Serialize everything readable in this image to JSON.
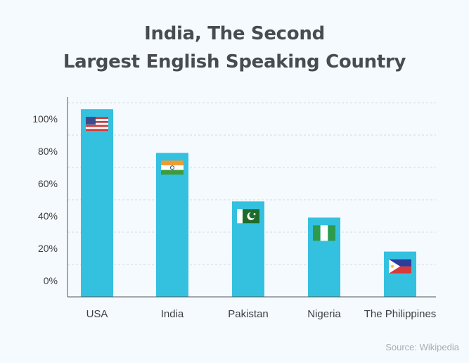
{
  "title_lines": [
    "India, The Second",
    "Largest English Speaking Country"
  ],
  "source": "Source: Wikipedia",
  "colors": {
    "bar": "#34c1e0",
    "axis": "#555555",
    "text": "#3f3f3f",
    "title": "#474c52",
    "grid": "#d4d9de"
  },
  "chart_data": {
    "type": "bar",
    "title": "India, The Second Largest English Speaking Country",
    "xlabel": "",
    "ylabel": "",
    "categories": [
      "USA",
      "India",
      "Pakistan",
      "Nigeria",
      "The Philippines"
    ],
    "values": [
      106,
      79,
      49,
      39,
      18
    ],
    "yticks": [
      "0%",
      "20%",
      "40%",
      "60%",
      "80%",
      "100%"
    ],
    "ylim": [
      0,
      100
    ],
    "grid": true,
    "flags": [
      "usa-flag-icon",
      "india-flag-icon",
      "pakistan-flag-icon",
      "nigeria-flag-icon",
      "philippines-flag-icon"
    ]
  }
}
